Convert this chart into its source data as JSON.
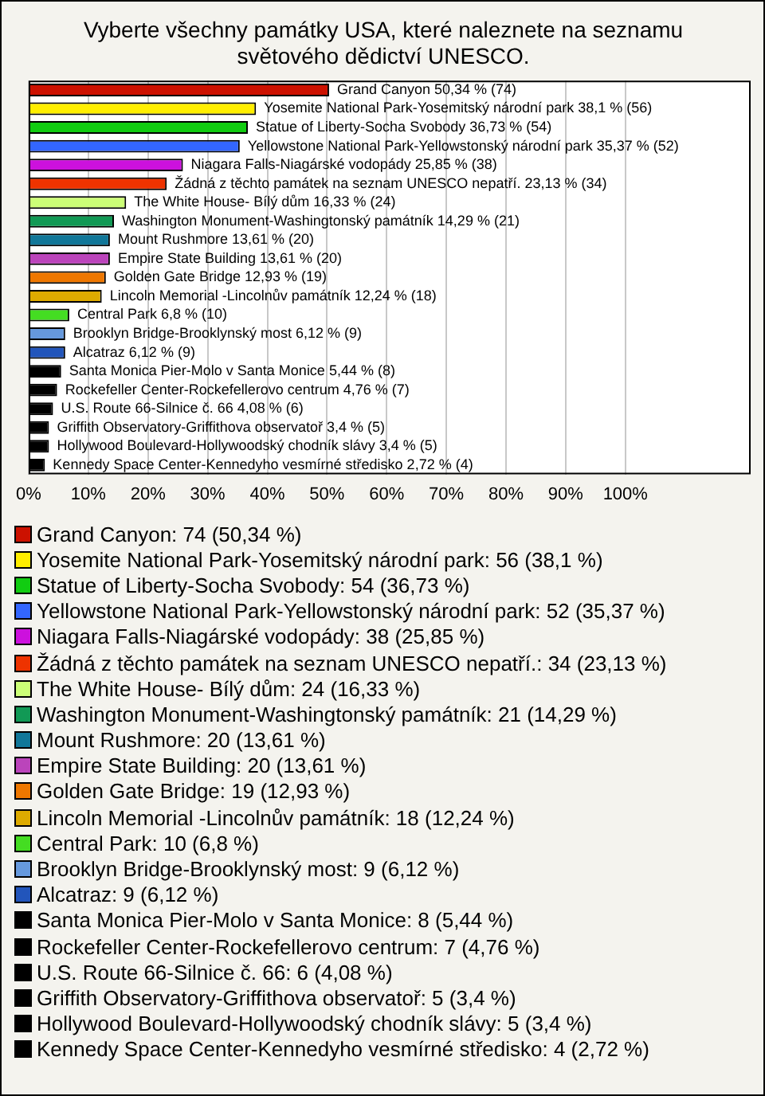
{
  "chart_data": {
    "type": "bar",
    "orientation": "horizontal",
    "title": "Vyberte všechny památky USA, které naleznete na seznamu světového dědictví UNESCO.",
    "categories": [
      "Grand Canyon",
      "Yosemite National Park-Yosemitský národní park",
      "Statue of Liberty-Socha Svobody",
      "Yellowstone National Park-Yellowstonský národní park",
      "Niagara Falls-Niagárské vodopády",
      "Žádná z těchto památek na seznam UNESCO nepatří.",
      "The White House- Bílý dům",
      "Washington Monument-Washingtonský památník",
      "Mount Rushmore",
      "Empire State Building",
      "Golden Gate Bridge",
      "Lincoln Memorial -Lincolnův památník",
      "Central Park",
      "Brooklyn Bridge-Brooklynský most",
      "Alcatraz",
      "Santa Monica Pier-Molo v Santa Monice",
      "Rockefeller Center-Rockefellerovo centrum",
      "U.S. Route 66-Silnice č. 66",
      "Griffith Observatory-Griffithova observatoř",
      "Hollywood Boulevard-Hollywoodský chodník slávy",
      "Kennedy Space Center-Kennedyho vesmírné středisko"
    ],
    "values": [
      50.34,
      38.1,
      36.73,
      35.37,
      25.85,
      23.13,
      16.33,
      14.29,
      13.61,
      13.61,
      12.93,
      12.24,
      6.8,
      6.12,
      6.12,
      5.44,
      4.76,
      4.08,
      3.4,
      3.4,
      2.72
    ],
    "value_labels": [
      "50,34 % (74)",
      "38,1 % (56)",
      "36,73 % (54)",
      "35,37 % (52)",
      "25,85 % (38)",
      "23,13 % (34)",
      "16,33 % (24)",
      "14,29 % (21)",
      "13,61 % (20)",
      "13,61 % (20)",
      "12,93 % (19)",
      "12,24 % (18)",
      "6,8 % (10)",
      "6,12 % (9)",
      "6,12 % (9)",
      "5,44 % (8)",
      "4,76 % (7)",
      "4,08 % (6)",
      "3,4 % (5)",
      "3,4 % (5)",
      "2,72 % (4)"
    ],
    "colors": [
      "#cc1100",
      "#ffee00",
      "#11cc11",
      "#3366ff",
      "#cc11dd",
      "#ee3300",
      "#ccff77",
      "#119955",
      "#117799",
      "#bb44bb",
      "#ee7700",
      "#ddaa00",
      "#44dd22",
      "#6699dd",
      "#2255bb",
      "#000000",
      "#000000",
      "#000000",
      "#000000",
      "#000000",
      "#000000"
    ],
    "xlim": [
      0,
      121
    ],
    "xticks": [
      {
        "value": 0,
        "label": "0%"
      },
      {
        "value": 10,
        "label": "10%"
      },
      {
        "value": 20,
        "label": "20%"
      },
      {
        "value": 30,
        "label": "30%"
      },
      {
        "value": 40,
        "label": "40%"
      },
      {
        "value": 50,
        "label": "50%"
      },
      {
        "value": 60,
        "label": "60%"
      },
      {
        "value": 70,
        "label": "70%"
      },
      {
        "value": 80,
        "label": "80%"
      },
      {
        "value": 90,
        "label": "90%"
      },
      {
        "value": 100,
        "label": "100%"
      }
    ],
    "grid": "x",
    "tick_labels": "x",
    "annotations": [
      "Grand Canyon: 74 (50,34 %)",
      "Yosemite National Park-Yosemitský národní park: 56 (38,1 %)",
      "Statue of Liberty-Socha Svobody: 54 (36,73 %)",
      "Yellowstone National Park-Yellowstonský národní park: 52 (35,37 %)",
      "Niagara Falls-Niagárské vodopády: 38 (25,85 %)",
      "Žádná z těchto památek na seznam UNESCO nepatří.: 34 (23,13 %)",
      "The White House- Bílý dům: 24 (16,33 %)",
      "Washington Monument-Washingtonský památník: 21 (14,29 %)",
      "Mount Rushmore: 20 (13,61 %)",
      "Empire State Building: 20 (13,61 %)",
      "Golden Gate Bridge: 19 (12,93 %)",
      "Lincoln Memorial -Lincolnův památník: 18 (12,24 %)",
      "Central Park: 10 (6,8 %)",
      "Brooklyn Bridge-Brooklynský most: 9 (6,12 %)",
      "Alcatraz: 9 (6,12 %)",
      "Santa Monica Pier-Molo v Santa Monice: 8 (5,44 %)",
      "Rockefeller Center-Rockefellerovo centrum: 7 (4,76 %)",
      "U.S. Route 66-Silnice č. 66: 6 (4,08 %)",
      "Griffith Observatory-Griffithova observatoř: 5 (3,4 %)",
      "Hollywood Boulevard-Hollywoodský chodník slávy: 5 (3,4 %)",
      "Kennedy Space Center-Kennedyho vesmírné středisko: 4 (2,72 %)"
    ]
  }
}
